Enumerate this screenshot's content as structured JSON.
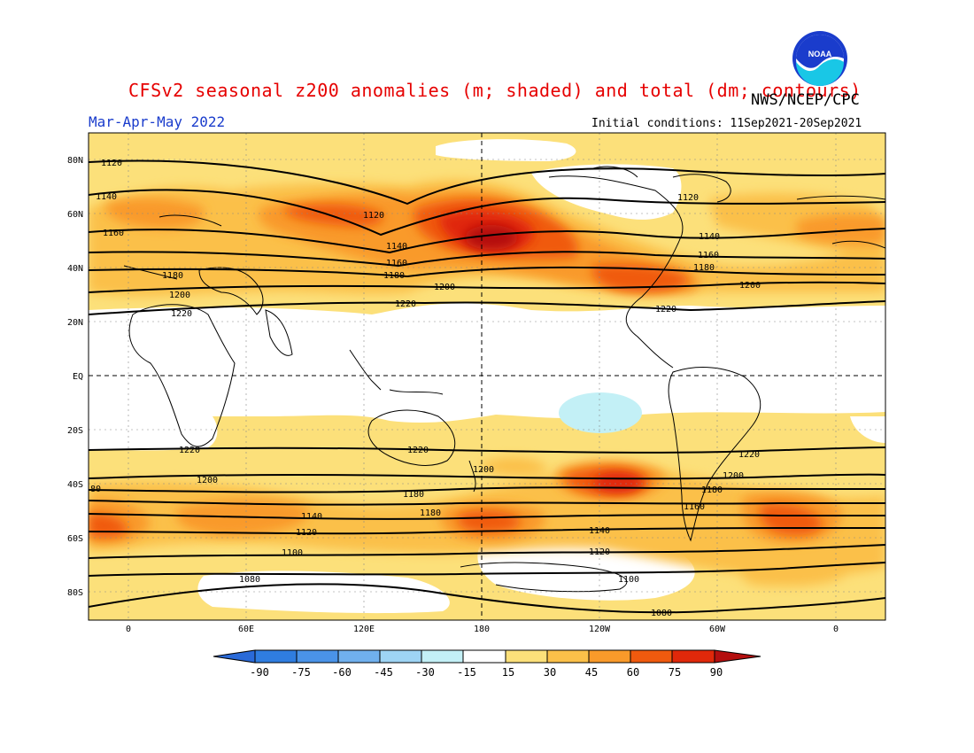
{
  "header": {
    "title": "CFSv2 seasonal z200 anomalies (m; shaded) and total (dm; contours)",
    "agency": "NWS/NCEP/CPC",
    "season": "Mar-Apr-May 2022",
    "initial_conditions": "Initial conditions: 11Sep2021-20Sep2021",
    "logo_text": "NOAA"
  },
  "map": {
    "lat_labels": [
      "80N",
      "60N",
      "40N",
      "20N",
      "EQ",
      "20S",
      "40S",
      "60S",
      "80S"
    ],
    "lon_labels": [
      "0",
      "60E",
      "120E",
      "180",
      "120W",
      "60W",
      "0"
    ],
    "contour_labels": [
      "1120",
      "1140",
      "1160",
      "1180",
      "1200",
      "1220",
      "1100",
      "1080",
      "80"
    ]
  },
  "colorbar": {
    "ticks": [
      "-90",
      "-75",
      "-60",
      "-45",
      "-30",
      "-15",
      "15",
      "30",
      "45",
      "60",
      "75",
      "90"
    ],
    "colors": [
      "#2a6ad8",
      "#2f7de0",
      "#4a93e8",
      "#70b0ee",
      "#9ed4f4",
      "#c3f0f6",
      "#ffffff",
      "#fce07a",
      "#fbc049",
      "#f99a2a",
      "#f05a0e",
      "#e0280a",
      "#b40f0f"
    ]
  },
  "colors": {
    "title": "#e60000",
    "season": "#1a3ccc",
    "c15": "#fce07a",
    "c30": "#fbc049",
    "c45": "#f99a2a",
    "c60": "#f05a0e",
    "c75": "#e0280a",
    "c90": "#b40f0f",
    "neg15": "#c3f0f6"
  }
}
